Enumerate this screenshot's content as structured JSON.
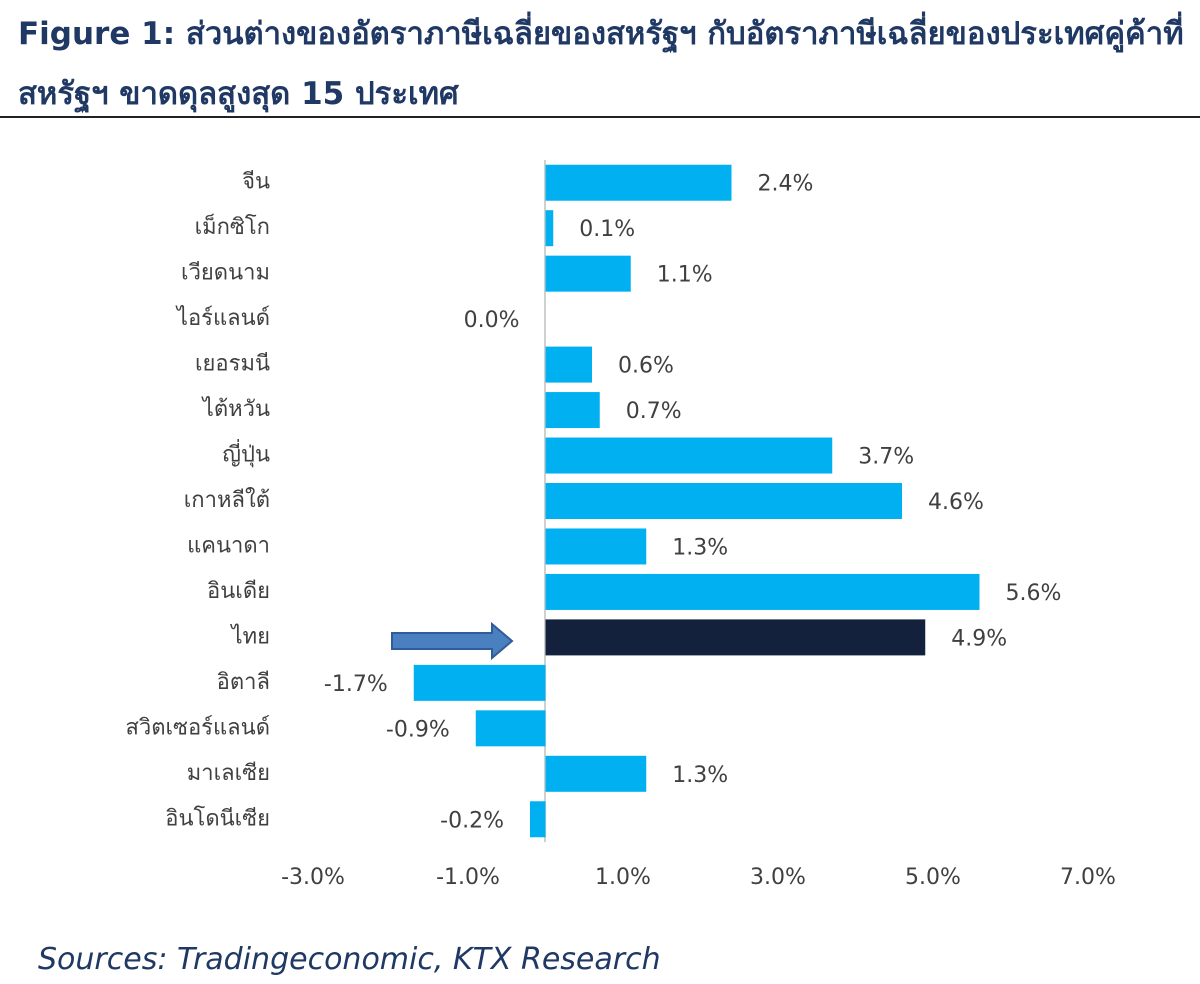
{
  "chart_data": {
    "type": "hbar",
    "title": "Figure 1: ส่วนต่างของอัตราภาษีเฉลี่ยของสหรัฐฯ กับอัตราภาษีเฉลี่ยของประเทศคู่ค้าที่สหรัฐฯ ขาดดุลสูงสุด 15 ประเทศ",
    "source": "Sources: Tradingeconomic, KTX Research",
    "categories": [
      "จีน",
      "เม็กซิโก",
      "เวียดนาม",
      "ไอร์แลนด์",
      "เยอรมนี",
      "ไต้หวัน",
      "ญี่ปุ่น",
      "เกาหลีใต้",
      "แคนาดา",
      "อินเดีย",
      "ไทย",
      "อิตาลี",
      "สวิตเซอร์แลนด์",
      "มาเลเซีย",
      "อินโดนีเซีย"
    ],
    "values": [
      2.4,
      0.1,
      1.1,
      0.0,
      0.6,
      0.7,
      3.7,
      4.6,
      1.3,
      5.6,
      4.9,
      -1.7,
      -0.9,
      1.3,
      -0.2
    ],
    "value_labels": [
      "2.4%",
      "0.1%",
      "1.1%",
      "0.0%",
      "0.6%",
      "0.7%",
      "3.7%",
      "4.6%",
      "1.3%",
      "5.6%",
      "4.9%",
      "-1.7%",
      "-0.9%",
      "1.3%",
      "-0.2%"
    ],
    "colors": [
      "#00b0f0",
      "#00b0f0",
      "#00b0f0",
      "#00b0f0",
      "#00b0f0",
      "#00b0f0",
      "#00b0f0",
      "#00b0f0",
      "#00b0f0",
      "#00b0f0",
      "#14213d",
      "#00b0f0",
      "#00b0f0",
      "#00b0f0",
      "#00b0f0"
    ],
    "xlim": [
      -3,
      7
    ],
    "xticks": [
      {
        "value": -3,
        "label": "-3.0%"
      },
      {
        "value": -1,
        "label": "-1.0%"
      },
      {
        "value": 1,
        "label": "1.0%"
      },
      {
        "value": 3,
        "label": "3.0%"
      },
      {
        "value": 5,
        "label": "5.0%"
      },
      {
        "value": 7,
        "label": "7.0%"
      }
    ]
  }
}
